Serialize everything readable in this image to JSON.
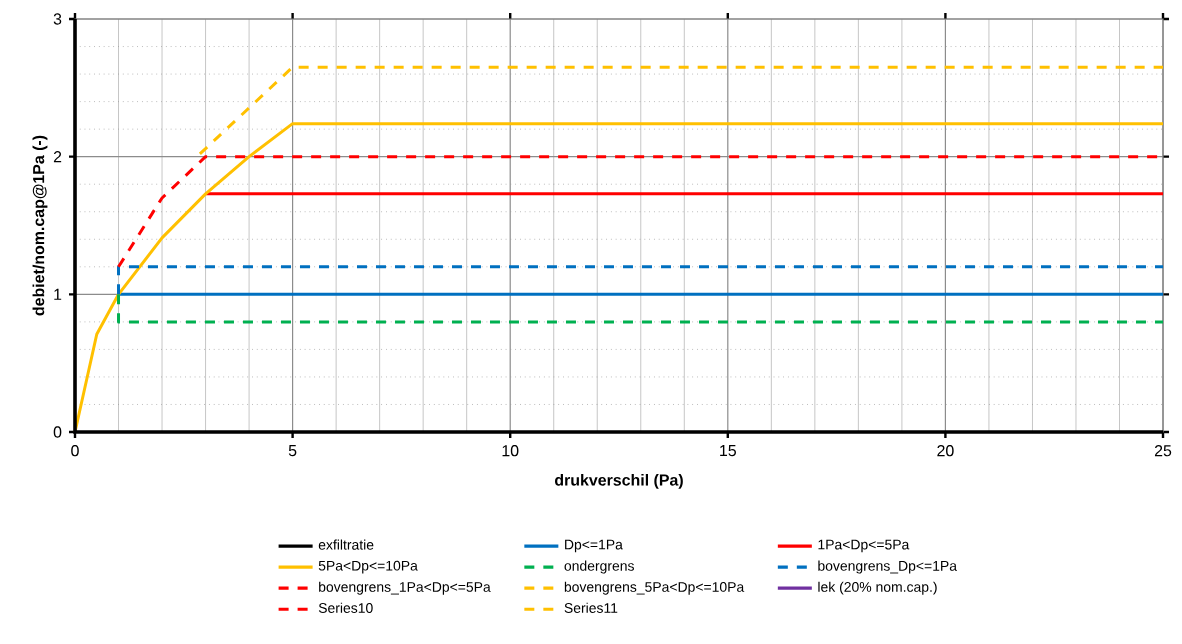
{
  "chart_data": {
    "type": "line",
    "xlabel": "drukverschil (Pa)",
    "ylabel": "debiet/nom.cap@1Pa (-)",
    "xlim": [
      0,
      25
    ],
    "ylim": [
      0,
      3
    ],
    "xticks": [
      0,
      5,
      10,
      15,
      20,
      25
    ],
    "yticks": [
      0,
      1,
      2,
      3
    ],
    "grid": true,
    "legend": "bottom",
    "marker": "none",
    "series": [
      {
        "name": "exfiltratie",
        "color": "#000000",
        "line_style": "solid"
      },
      {
        "name": "Dp<=1Pa",
        "color": "#0070c0",
        "line_style": "solid",
        "x": [
          1,
          25
        ],
        "values": [
          1,
          1
        ]
      },
      {
        "name": "1Pa<Dp<=5Pa",
        "color": "#ff0000",
        "line_style": "solid",
        "x": [
          3,
          25
        ],
        "values": [
          1.73,
          1.73
        ]
      },
      {
        "name": "5Pa<Dp<=10Pa",
        "color": "#ffc000",
        "line_style": "solid",
        "x": [
          0,
          0.5,
          1,
          2,
          3,
          4,
          5,
          25
        ],
        "values": [
          0,
          0.71,
          1,
          1.41,
          1.73,
          2,
          2.24,
          2.24
        ]
      },
      {
        "name": "ondergrens",
        "color": "#00b050",
        "line_style": "dashed",
        "x": [
          1,
          1,
          25
        ],
        "values": [
          1,
          0.8,
          0.8
        ]
      },
      {
        "name": "bovengrens_Dp<=1Pa",
        "color": "#0070c0",
        "line_style": "dashed",
        "x": [
          1,
          1,
          25
        ],
        "values": [
          1,
          1.2,
          1.2
        ]
      },
      {
        "name": "bovengrens_1Pa<Dp<=5Pa",
        "color": "#ff0000",
        "line_style": "dashed",
        "x": [
          1,
          2,
          3,
          25
        ],
        "values": [
          1.2,
          1.7,
          2,
          2
        ]
      },
      {
        "name": "bovengrens_5Pa<Dp<=10Pa",
        "color": "#ffc000",
        "line_style": "dashed",
        "x": [
          2.87,
          5,
          25
        ],
        "values": [
          2.02,
          2.65,
          2.65
        ]
      },
      {
        "name": "lek (20% nom.cap.)",
        "color": "#7030a0",
        "line_style": "solid"
      },
      {
        "name": "Series10",
        "color": "#ff0000",
        "line_style": "dashed"
      },
      {
        "name": "Series11",
        "color": "#ffc000",
        "line_style": "dashed"
      }
    ]
  }
}
